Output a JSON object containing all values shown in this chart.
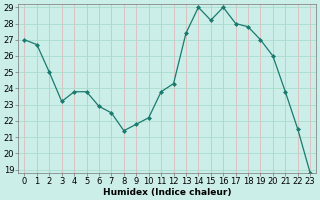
{
  "x": [
    0,
    1,
    2,
    3,
    4,
    5,
    6,
    7,
    8,
    9,
    10,
    11,
    12,
    13,
    14,
    15,
    16,
    17,
    18,
    19,
    20,
    21,
    22,
    23
  ],
  "y": [
    27,
    26.7,
    25,
    23.2,
    23.8,
    23.8,
    22.9,
    22.5,
    21.4,
    21.8,
    22.2,
    23.8,
    24.3,
    27.4,
    29.0,
    28.2,
    29.0,
    28.0,
    27.8,
    27.0,
    26.0,
    23.8,
    21.5,
    18.8
  ],
  "xlabel": "Humidex (Indice chaleur)",
  "ylim": [
    19,
    29
  ],
  "yticks": [
    19,
    20,
    21,
    22,
    23,
    24,
    25,
    26,
    27,
    28,
    29
  ],
  "xticks": [
    0,
    1,
    2,
    3,
    4,
    5,
    6,
    7,
    8,
    9,
    10,
    11,
    12,
    13,
    14,
    15,
    16,
    17,
    18,
    19,
    20,
    21,
    22,
    23
  ],
  "line_color": "#1a7a6e",
  "marker_color": "#1a7a6e",
  "bg_color": "#cceee8",
  "grid_major_color": "#aaddcc",
  "grid_minor_color": "#ddbbbb",
  "label_fontsize": 6.5,
  "tick_fontsize": 6.0
}
